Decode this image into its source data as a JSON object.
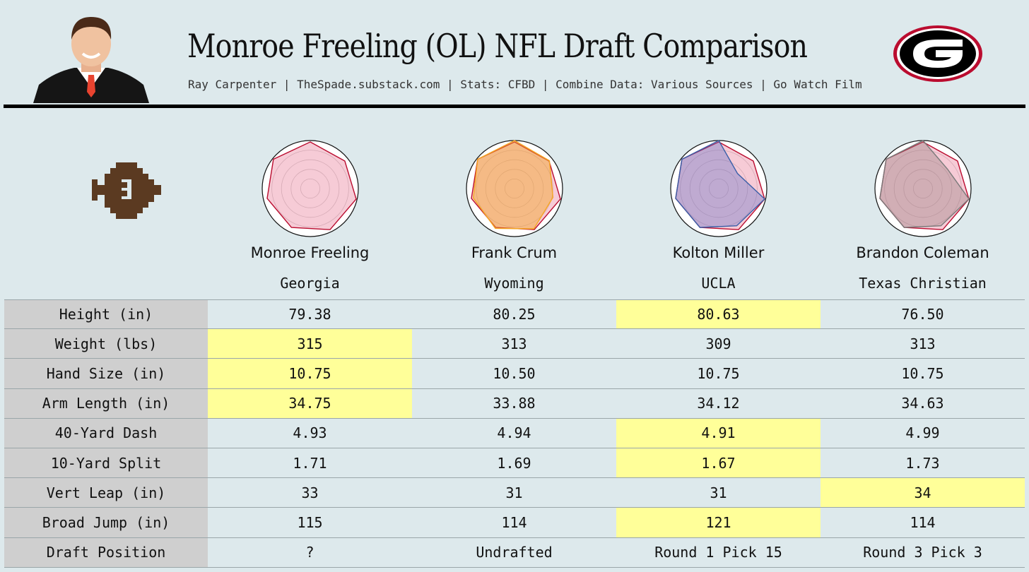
{
  "header": {
    "title": "Monroe Freeling (OL) NFL Draft Comparison",
    "subtitle": "Ray Carpenter | TheSpade.substack.com | Stats: CFBD | Combine Data: Various Sources | Go Watch Film",
    "logo_letter": "G"
  },
  "colors": {
    "background": "#dde9ec",
    "highlight": "#ffff99",
    "label_bg": "#cfcfcf",
    "georgia_red": "#ba0c2f",
    "crum": "#f5a623",
    "miller": "#3a5fa8",
    "coleman": "#7a7a7a"
  },
  "players": [
    {
      "name": "Monroe Freeling",
      "school": "Georgia"
    },
    {
      "name": "Frank Crum",
      "school": "Wyoming"
    },
    {
      "name": "Kolton Miller",
      "school": "UCLA"
    },
    {
      "name": "Brandon Coleman",
      "school": "Texas Christian"
    }
  ],
  "chart_data": {
    "type": "table",
    "title": "Monroe Freeling (OL) NFL Draft Comparison",
    "columns": [
      "Monroe Freeling",
      "Frank Crum",
      "Kolton Miller",
      "Brandon Coleman"
    ],
    "rows": [
      {
        "label": "Height (in)",
        "values": [
          "79.38",
          "80.25",
          "80.63",
          "76.50"
        ],
        "highlight": [
          2
        ]
      },
      {
        "label": "Weight (lbs)",
        "values": [
          "315",
          "313",
          "309",
          "313"
        ],
        "highlight": [
          0
        ]
      },
      {
        "label": "Hand Size (in)",
        "values": [
          "10.75",
          "10.50",
          "10.75",
          "10.75"
        ],
        "highlight": [
          0
        ]
      },
      {
        "label": "Arm Length (in)",
        "values": [
          "34.75",
          "33.88",
          "34.12",
          "34.63"
        ],
        "highlight": [
          0
        ]
      },
      {
        "label": "40-Yard Dash",
        "values": [
          "4.93",
          "4.94",
          "4.91",
          "4.99"
        ],
        "highlight": [
          2
        ]
      },
      {
        "label": "10-Yard Split",
        "values": [
          "1.71",
          "1.69",
          "1.67",
          "1.73"
        ],
        "highlight": [
          2
        ]
      },
      {
        "label": "Vert Leap (in)",
        "values": [
          "33",
          "31",
          "31",
          "34"
        ],
        "highlight": [
          3
        ]
      },
      {
        "label": "Broad Jump (in)",
        "values": [
          "115",
          "114",
          "121",
          "114"
        ],
        "highlight": [
          2
        ]
      },
      {
        "label": "Draft Position",
        "values": [
          "?",
          "Undrafted",
          "Round 1 Pick 15",
          "Round 3 Pick 3"
        ],
        "highlight": []
      }
    ],
    "radar": {
      "type": "radar",
      "axes": 7,
      "range": [
        0,
        1
      ],
      "base": {
        "name": "Monroe Freeling",
        "values": [
          0.97,
          0.92,
          0.98,
          0.95,
          0.9,
          0.92,
          0.98
        ]
      },
      "comparisons": [
        null,
        {
          "name": "Frank Crum",
          "values": [
            1.0,
            0.93,
            0.82,
            0.93,
            0.92,
            0.88,
            0.98
          ]
        },
        {
          "name": "Kolton Miller",
          "values": [
            1.0,
            0.5,
            0.98,
            0.86,
            0.9,
            0.92,
            0.98
          ]
        },
        {
          "name": "Brandon Coleman",
          "values": [
            1.0,
            0.65,
            0.98,
            0.86,
            0.9,
            0.92,
            0.98
          ]
        }
      ]
    }
  }
}
